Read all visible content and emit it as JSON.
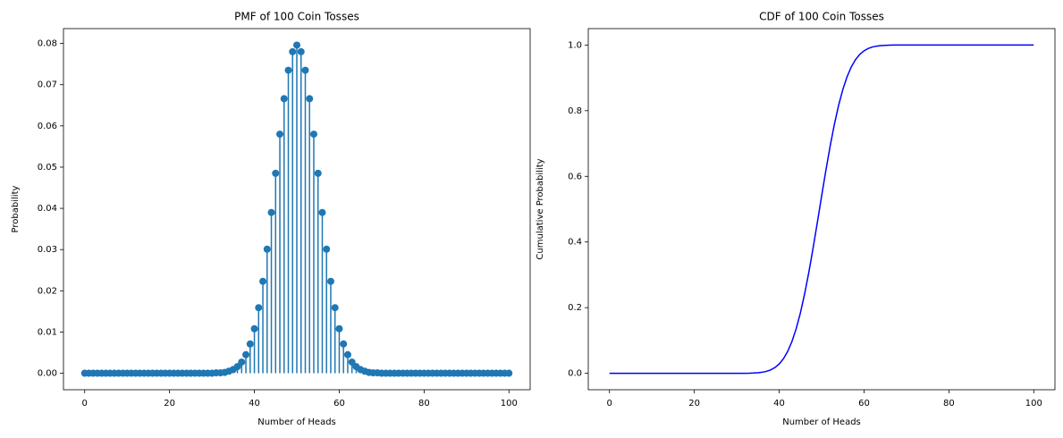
{
  "chart_data": [
    {
      "type": "stem",
      "title": "PMF of 100 Coin Tosses",
      "xlabel": "Number of Heads",
      "ylabel": "Probability",
      "color": "#1f77b4",
      "xlim": [
        -5,
        105
      ],
      "xticks": [
        0,
        20,
        40,
        60,
        80,
        100
      ],
      "ylim": [
        -0.004,
        0.0836
      ],
      "yticks": [
        {
          "value": 0,
          "label": "0.00"
        },
        {
          "value": 0.01,
          "label": "0.01"
        },
        {
          "value": 0.02,
          "label": "0.02"
        },
        {
          "value": 0.03,
          "label": "0.03"
        },
        {
          "value": 0.04,
          "label": "0.04"
        },
        {
          "value": 0.05,
          "label": "0.05"
        },
        {
          "value": 0.06,
          "label": "0.06"
        },
        {
          "value": 0.07,
          "label": "0.07"
        },
        {
          "value": 0.08,
          "label": "0.08"
        }
      ],
      "x": [
        0,
        1,
        2,
        3,
        4,
        5,
        6,
        7,
        8,
        9,
        10,
        11,
        12,
        13,
        14,
        15,
        16,
        17,
        18,
        19,
        20,
        21,
        22,
        23,
        24,
        25,
        26,
        27,
        28,
        29,
        30,
        31,
        32,
        33,
        34,
        35,
        36,
        37,
        38,
        39,
        40,
        41,
        42,
        43,
        44,
        45,
        46,
        47,
        48,
        49,
        50,
        51,
        52,
        53,
        54,
        55,
        56,
        57,
        58,
        59,
        60,
        61,
        62,
        63,
        64,
        65,
        66,
        67,
        68,
        69,
        70,
        71,
        72,
        73,
        74,
        75,
        76,
        77,
        78,
        79,
        80,
        81,
        82,
        83,
        84,
        85,
        86,
        87,
        88,
        89,
        90,
        91,
        92,
        93,
        94,
        95,
        96,
        97,
        98,
        99,
        100
      ],
      "values": [
        0,
        0,
        0,
        0,
        0,
        0,
        0,
        0,
        0,
        0,
        0,
        0,
        0,
        0,
        0,
        0,
        0,
        0,
        0,
        0,
        0,
        0,
        0,
        0,
        0,
        0,
        0,
        0,
        0,
        0,
        0,
        0.0001,
        0.0001,
        0.0002,
        0.0005,
        0.0009,
        0.0016,
        0.0027,
        0.0045,
        0.0071,
        0.0108,
        0.0159,
        0.0223,
        0.0301,
        0.039,
        0.0485,
        0.058,
        0.0666,
        0.0735,
        0.078,
        0.0796,
        0.078,
        0.0735,
        0.0666,
        0.058,
        0.0485,
        0.039,
        0.0301,
        0.0223,
        0.0159,
        0.0108,
        0.0071,
        0.0045,
        0.0027,
        0.0016,
        0.0009,
        0.0005,
        0.0002,
        0.0001,
        0.0001,
        0,
        0,
        0,
        0,
        0,
        0,
        0,
        0,
        0,
        0,
        0,
        0,
        0,
        0,
        0,
        0,
        0,
        0,
        0,
        0,
        0,
        0,
        0,
        0,
        0,
        0,
        0,
        0,
        0,
        0,
        0
      ]
    },
    {
      "type": "line",
      "title": "CDF of 100 Coin Tosses",
      "xlabel": "Number of Heads",
      "ylabel": "Cumulative Probability",
      "color": "#0000ff",
      "xlim": [
        -5,
        105
      ],
      "xticks": [
        0,
        20,
        40,
        60,
        80,
        100
      ],
      "ylim": [
        -0.05,
        1.05
      ],
      "yticks": [
        {
          "value": 0,
          "label": "0.0"
        },
        {
          "value": 0.2,
          "label": "0.2"
        },
        {
          "value": 0.4,
          "label": "0.4"
        },
        {
          "value": 0.6,
          "label": "0.6"
        },
        {
          "value": 0.8,
          "label": "0.8"
        },
        {
          "value": 1,
          "label": "1.0"
        }
      ],
      "x": [
        0,
        1,
        2,
        3,
        4,
        5,
        6,
        7,
        8,
        9,
        10,
        11,
        12,
        13,
        14,
        15,
        16,
        17,
        18,
        19,
        20,
        21,
        22,
        23,
        24,
        25,
        26,
        27,
        28,
        29,
        30,
        31,
        32,
        33,
        34,
        35,
        36,
        37,
        38,
        39,
        40,
        41,
        42,
        43,
        44,
        45,
        46,
        47,
        48,
        49,
        50,
        51,
        52,
        53,
        54,
        55,
        56,
        57,
        58,
        59,
        60,
        61,
        62,
        63,
        64,
        65,
        66,
        67,
        68,
        69,
        70,
        71,
        72,
        73,
        74,
        75,
        76,
        77,
        78,
        79,
        80,
        81,
        82,
        83,
        84,
        85,
        86,
        87,
        88,
        89,
        90,
        91,
        92,
        93,
        94,
        95,
        96,
        97,
        98,
        99,
        100
      ],
      "values": [
        0,
        0,
        0,
        0,
        0,
        0,
        0,
        0,
        0,
        0,
        0,
        0,
        0,
        0,
        0,
        0,
        0,
        0,
        0,
        0,
        0,
        0,
        0,
        0,
        0,
        0,
        0,
        0,
        0,
        0,
        0,
        0.0001,
        0.0002,
        0.0004,
        0.0009,
        0.0018,
        0.0033,
        0.006,
        0.0105,
        0.0176,
        0.0284,
        0.0443,
        0.0666,
        0.0967,
        0.1356,
        0.1841,
        0.2421,
        0.3086,
        0.3822,
        0.4602,
        0.5398,
        0.6178,
        0.6914,
        0.7579,
        0.8159,
        0.8644,
        0.9033,
        0.9334,
        0.9557,
        0.9716,
        0.9824,
        0.9895,
        0.994,
        0.9967,
        0.9982,
        0.9991,
        0.9996,
        0.9998,
        0.9999,
        1,
        1,
        1,
        1,
        1,
        1,
        1,
        1,
        1,
        1,
        1,
        1,
        1,
        1,
        1,
        1,
        1,
        1,
        1,
        1,
        1,
        1,
        1,
        1,
        1,
        1,
        1,
        1,
        1,
        1,
        1,
        1
      ]
    }
  ]
}
